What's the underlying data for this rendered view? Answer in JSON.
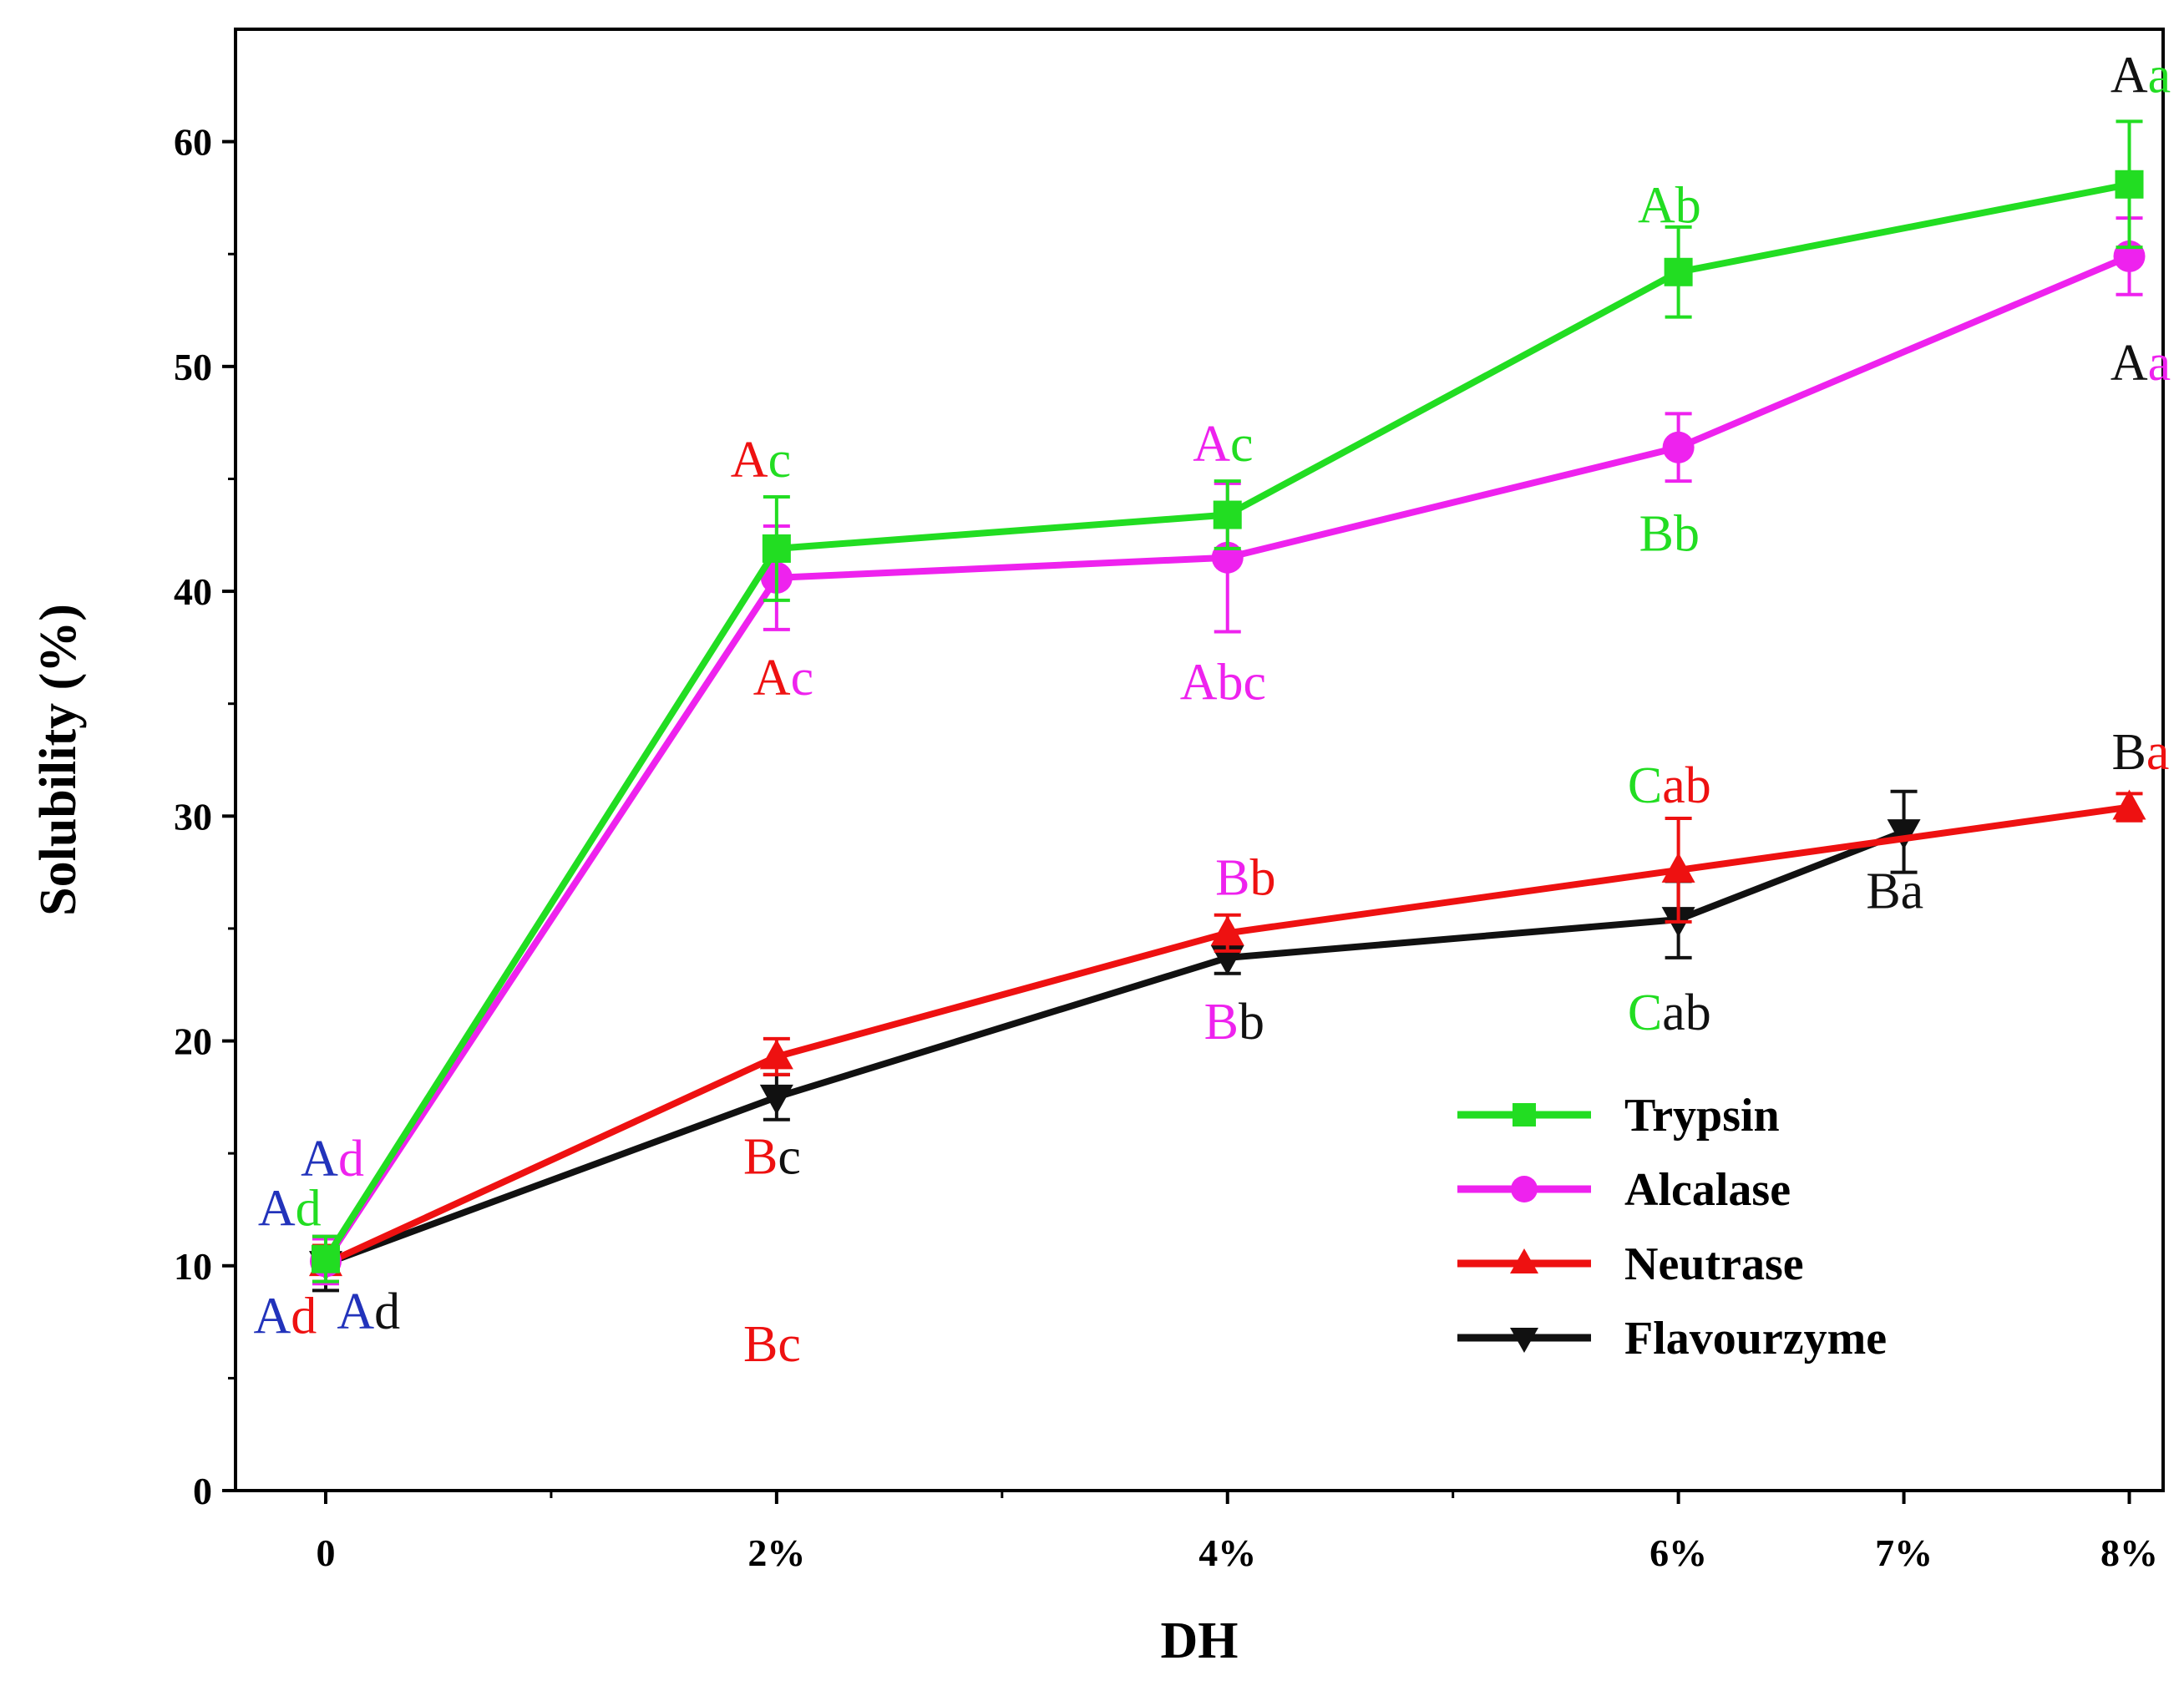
{
  "chart_data": {
    "type": "line",
    "title": "",
    "xlabel": "DH",
    "ylabel": "Solubility (%)",
    "ylim": [
      0,
      65
    ],
    "yticks": [
      0,
      10,
      20,
      30,
      40,
      50,
      60
    ],
    "x_positions": [
      0,
      2,
      4,
      6,
      7,
      8
    ],
    "xlim": [
      -0.4,
      8.15
    ],
    "xtick_labels": [
      "0",
      "2%",
      "4%",
      "6%",
      "7%",
      "8%"
    ],
    "minor_x_ticks": [
      1,
      3,
      5
    ],
    "grid": false,
    "legend_placement": "lower-right",
    "series": [
      {
        "name": "Trypsin",
        "color": "#22dd22",
        "marker": "square",
        "x": [
          0,
          2,
          4,
          6,
          8
        ],
        "values": [
          10.3,
          41.9,
          43.4,
          54.2,
          58.1
        ],
        "errors": [
          1.0,
          2.3,
          1.5,
          2.0,
          2.8
        ]
      },
      {
        "name": "Alcalase",
        "color": "#ee22ee",
        "marker": "circle",
        "x": [
          0,
          2,
          4,
          6,
          8
        ],
        "values": [
          10.2,
          40.6,
          41.5,
          46.4,
          54.9
        ],
        "errors": [
          1.0,
          2.3,
          3.3,
          1.5,
          1.7
        ]
      },
      {
        "name": "Neutrase",
        "color": "#ee1111",
        "marker": "triangle-up",
        "x": [
          0,
          2,
          4,
          6,
          8
        ],
        "values": [
          10.1,
          19.3,
          24.8,
          27.6,
          30.4
        ],
        "errors": [
          0.8,
          0.8,
          0.8,
          2.3,
          0.6
        ]
      },
      {
        "name": "Flavourzyme",
        "color": "#111111",
        "marker": "triangle-down",
        "x": [
          0,
          2,
          4,
          6,
          7
        ],
        "values": [
          10.1,
          17.5,
          23.7,
          25.4,
          29.3
        ],
        "errors": [
          1.2,
          1.0,
          0.7,
          1.7,
          1.8
        ]
      }
    ],
    "annotations": [
      {
        "x": 0.03,
        "y": 14.0,
        "parts": [
          {
            "t": "A",
            "c": "#2233bb"
          },
          {
            "t": "d",
            "c": "#ee22ee"
          }
        ]
      },
      {
        "x": -0.16,
        "y": 11.8,
        "parts": [
          {
            "t": "A",
            "c": "#2233bb"
          },
          {
            "t": "d",
            "c": "#22dd22"
          }
        ]
      },
      {
        "x": -0.18,
        "y": 7.0,
        "parts": [
          {
            "t": "A",
            "c": "#2233bb"
          },
          {
            "t": "d",
            "c": "#ee1111"
          }
        ]
      },
      {
        "x": 0.19,
        "y": 7.2,
        "parts": [
          {
            "t": "A",
            "c": "#2233bb"
          },
          {
            "t": "d",
            "c": "#111111"
          }
        ]
      },
      {
        "x": 1.93,
        "y": 45.1,
        "parts": [
          {
            "t": "A",
            "c": "#ee1111"
          },
          {
            "t": "c",
            "c": "#22dd22"
          }
        ]
      },
      {
        "x": 2.03,
        "y": 35.4,
        "parts": [
          {
            "t": "A",
            "c": "#ee1111"
          },
          {
            "t": "c",
            "c": "#ee22ee"
          }
        ]
      },
      {
        "x": 1.98,
        "y": 5.76,
        "parts": [
          {
            "t": "B",
            "c": "#ee1111"
          },
          {
            "t": "c",
            "c": "#ee1111"
          }
        ]
      },
      {
        "x": 1.98,
        "y": 14.1,
        "parts": [
          {
            "t": "B",
            "c": "#ee1111"
          },
          {
            "t": "c",
            "c": "#111111"
          }
        ]
      },
      {
        "x": 3.98,
        "y": 45.8,
        "parts": [
          {
            "t": "A",
            "c": "#ee22ee"
          },
          {
            "t": "c",
            "c": "#22dd22"
          }
        ]
      },
      {
        "x": 3.98,
        "y": 35.2,
        "parts": [
          {
            "t": "Abc",
            "c": "#ee22ee"
          }
        ]
      },
      {
        "x": 4.08,
        "y": 26.5,
        "parts": [
          {
            "t": "B",
            "c": "#ee22ee"
          },
          {
            "t": "b",
            "c": "#ee1111"
          }
        ]
      },
      {
        "x": 4.03,
        "y": 20.1,
        "parts": [
          {
            "t": "B",
            "c": "#ee22ee"
          },
          {
            "t": "b",
            "c": "#111111"
          }
        ]
      },
      {
        "x": 5.96,
        "y": 56.4,
        "parts": [
          {
            "t": "Ab",
            "c": "#22dd22"
          }
        ]
      },
      {
        "x": 5.96,
        "y": 41.8,
        "parts": [
          {
            "t": "Bb",
            "c": "#22dd22"
          }
        ]
      },
      {
        "x": 5.96,
        "y": 30.6,
        "parts": [
          {
            "t": "C",
            "c": "#22dd22"
          },
          {
            "t": "ab",
            "c": "#ee1111"
          }
        ]
      },
      {
        "x": 5.96,
        "y": 20.5,
        "parts": [
          {
            "t": "C",
            "c": "#22dd22"
          },
          {
            "t": "ab",
            "c": "#111111"
          }
        ]
      },
      {
        "x": 6.96,
        "y": 25.9,
        "parts": [
          {
            "t": "Ba",
            "c": "#111111"
          }
        ]
      },
      {
        "x": 8.05,
        "y": 62.2,
        "parts": [
          {
            "t": "A",
            "c": "#111111"
          },
          {
            "t": "a",
            "c": "#22dd22"
          }
        ]
      },
      {
        "x": 8.05,
        "y": 49.4,
        "parts": [
          {
            "t": "A",
            "c": "#111111"
          },
          {
            "t": "a",
            "c": "#ee22ee"
          }
        ]
      },
      {
        "x": 8.05,
        "y": 32.1,
        "parts": [
          {
            "t": "B",
            "c": "#111111"
          },
          {
            "t": "a",
            "c": "#ee1111"
          }
        ]
      }
    ]
  }
}
